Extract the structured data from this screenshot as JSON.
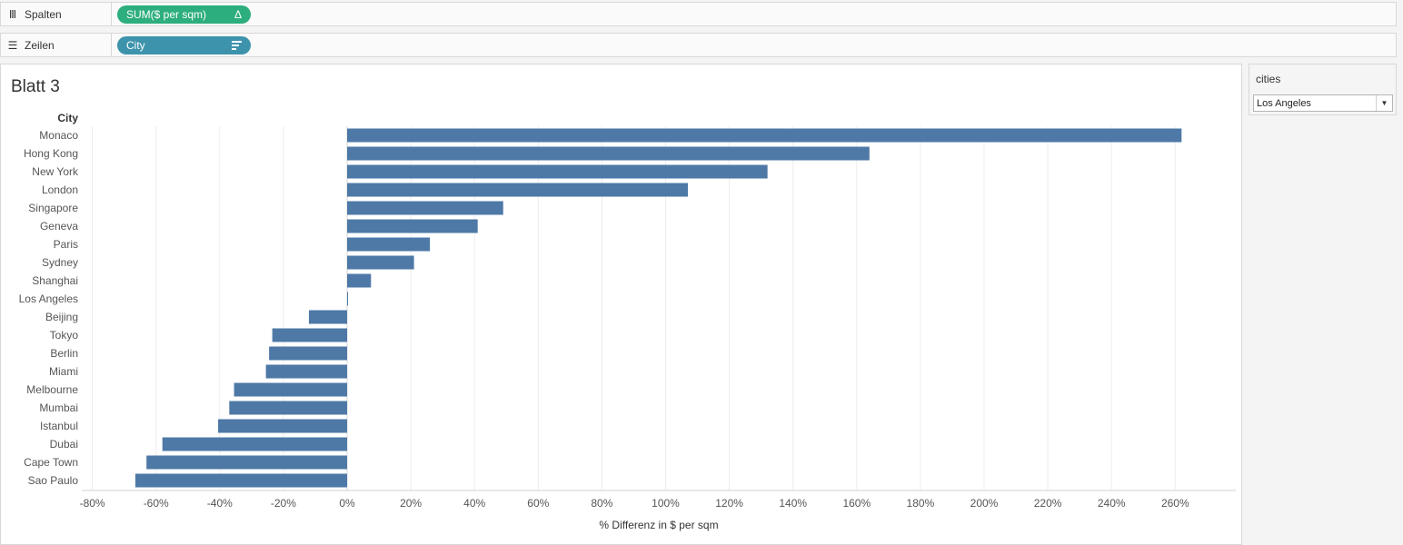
{
  "shelves": {
    "columns": {
      "label": "Spalten",
      "icon": "columns-icon",
      "pill": "SUM($ per sqm)",
      "pill_icon": "delta-icon",
      "pill_icon_glyph": "Δ",
      "pill_color": "#2dae7e"
    },
    "rows": {
      "label": "Zeilen",
      "icon": "rows-icon",
      "pill": "City",
      "pill_icon": "sort-icon",
      "pill_color": "#3e93ac"
    }
  },
  "sheet": {
    "title": "Blatt 3"
  },
  "filter": {
    "title": "cities",
    "selected": "Los Angeles"
  },
  "chart_data": {
    "type": "bar",
    "orientation": "horizontal",
    "row_header": "City",
    "xlabel": "% Differenz in $ per sqm",
    "xlim": [
      -80,
      280
    ],
    "x_ticks": [
      "-80%",
      "-60%",
      "-40%",
      "-20%",
      "0%",
      "20%",
      "40%",
      "60%",
      "80%",
      "100%",
      "120%",
      "140%",
      "160%",
      "180%",
      "200%",
      "220%",
      "240%",
      "260%"
    ],
    "x_tick_values": [
      -80,
      -60,
      -40,
      -20,
      0,
      20,
      40,
      60,
      80,
      100,
      120,
      140,
      160,
      180,
      200,
      220,
      240,
      260
    ],
    "grid": "vertical",
    "bar_color": "#4e79a7",
    "categories": [
      "Monaco",
      "Hong Kong",
      "New York",
      "London",
      "Singapore",
      "Geneva",
      "Paris",
      "Sydney",
      "Shanghai",
      "Los Angeles",
      "Beijing",
      "Tokyo",
      "Berlin",
      "Miami",
      "Melbourne",
      "Mumbai",
      "Istanbul",
      "Dubai",
      "Cape Town",
      "Sao Paulo"
    ],
    "values": [
      262,
      164,
      132,
      107,
      49,
      41,
      26,
      21,
      7.5,
      0,
      -12,
      -23.5,
      -24.5,
      -25.5,
      -35.5,
      -37,
      -40.5,
      -58,
      -63,
      -66.5
    ]
  }
}
